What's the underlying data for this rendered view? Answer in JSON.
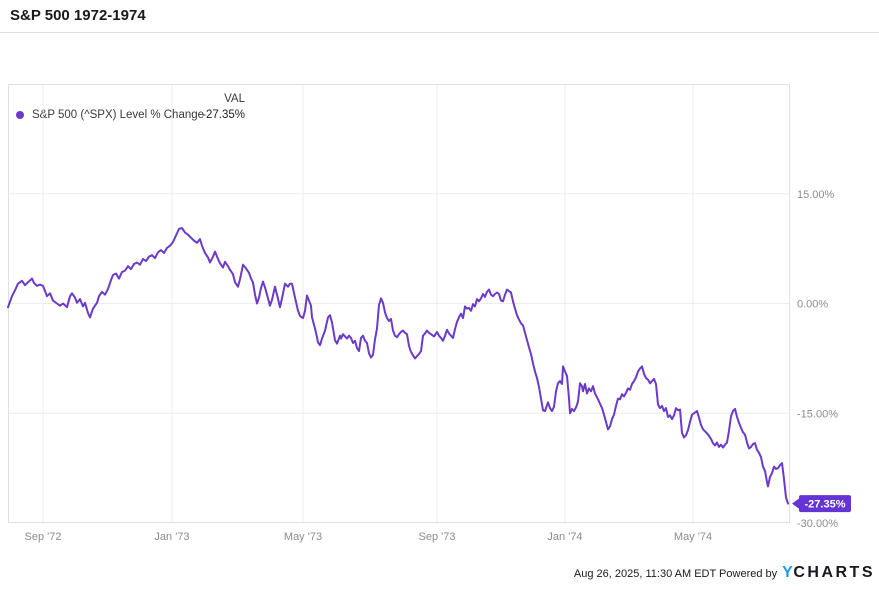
{
  "page": {
    "title": "S&P 500 1972-1974"
  },
  "legend": {
    "series_label": "S&P 500 (^SPX) Level % Change",
    "val_header": "VAL",
    "val_value": "-27.35%"
  },
  "footer": {
    "timestamp_powered": "Aug 26, 2025, 11:30 AM EDT Powered by",
    "logo_y": "Y",
    "logo_charts": "CHARTS"
  },
  "colors": {
    "line": "#6b3ac9",
    "badge": "#6434d4",
    "badge_text": "#ffffff",
    "grid": "#ececec",
    "plot_border": "#e0e0e0",
    "axis_text": "#8c8c8c",
    "title_text": "#1a1a1a",
    "logo_blue": "#1e9bf0",
    "logo_dark": "#15181e",
    "background": "#ffffff"
  },
  "chart_data": {
    "type": "line",
    "title": "S&P 500 1972-1974",
    "series_name": "S&P 500 (^SPX) Level % Change",
    "unit": "percent change",
    "ylim": [
      -30,
      30
    ],
    "grid": "on",
    "legend_position": "top-left",
    "y_gridlines": [
      15,
      0,
      -15
    ],
    "y_axis_labels": [
      {
        "label": "15.00%",
        "value": 15
      },
      {
        "label": "0.00%",
        "value": 0
      },
      {
        "label": "-15.00%",
        "value": -15
      },
      {
        "label": "-30.00%",
        "value": -30
      }
    ],
    "x_domain": [
      0,
      782
    ],
    "x_ticks": [
      {
        "label": "Sep '72",
        "x": 35
      },
      {
        "label": "Jan '73",
        "x": 164
      },
      {
        "label": "May '73",
        "x": 295
      },
      {
        "label": "Sep '73",
        "x": 429
      },
      {
        "label": "Jan '74",
        "x": 557
      },
      {
        "label": "May '74",
        "x": 685
      }
    ],
    "end_label": "-27.35%",
    "end_value": -27.35,
    "points": [
      [
        0,
        -0.5
      ],
      [
        4,
        1.0
      ],
      [
        7,
        1.8
      ],
      [
        10,
        2.7
      ],
      [
        14,
        3.1
      ],
      [
        17,
        2.5
      ],
      [
        20,
        2.9
      ],
      [
        24,
        3.4
      ],
      [
        26,
        2.8
      ],
      [
        29,
        2.4
      ],
      [
        32,
        2.6
      ],
      [
        35,
        2.4
      ],
      [
        39,
        1.0
      ],
      [
        42,
        1.4
      ],
      [
        45,
        0.4
      ],
      [
        49,
        0.0
      ],
      [
        52,
        -0.3
      ],
      [
        55,
        0.0
      ],
      [
        59,
        -0.5
      ],
      [
        62,
        1.0
      ],
      [
        64,
        1.4
      ],
      [
        67,
        0.8
      ],
      [
        69,
        0.1
      ],
      [
        72,
        0.6
      ],
      [
        75,
        -0.4
      ],
      [
        77,
        0.1
      ],
      [
        80,
        -1.3
      ],
      [
        82,
        -1.9
      ],
      [
        85,
        -0.7
      ],
      [
        89,
        0.1
      ],
      [
        91,
        1.0
      ],
      [
        94,
        1.6
      ],
      [
        97,
        1.2
      ],
      [
        100,
        2.0
      ],
      [
        103,
        3.2
      ],
      [
        105,
        3.9
      ],
      [
        108,
        4.1
      ],
      [
        111,
        3.4
      ],
      [
        114,
        4.3
      ],
      [
        117,
        4.5
      ],
      [
        120,
        5.1
      ],
      [
        123,
        4.7
      ],
      [
        126,
        5.4
      ],
      [
        129,
        5.6
      ],
      [
        132,
        5.3
      ],
      [
        135,
        6.1
      ],
      [
        138,
        5.8
      ],
      [
        141,
        6.4
      ],
      [
        144,
        6.6
      ],
      [
        147,
        6.2
      ],
      [
        150,
        7.0
      ],
      [
        153,
        7.3
      ],
      [
        156,
        6.9
      ],
      [
        159,
        7.6
      ],
      [
        162,
        7.9
      ],
      [
        165,
        8.4
      ],
      [
        168,
        9.3
      ],
      [
        171,
        10.2
      ],
      [
        174,
        10.3
      ],
      [
        177,
        9.7
      ],
      [
        180,
        9.4
      ],
      [
        183,
        9.0
      ],
      [
        186,
        8.6
      ],
      [
        189,
        8.3
      ],
      [
        192,
        8.8
      ],
      [
        194,
        7.9
      ],
      [
        197,
        6.9
      ],
      [
        200,
        6.3
      ],
      [
        202,
        5.6
      ],
      [
        205,
        6.4
      ],
      [
        207,
        7.1
      ],
      [
        210,
        6.1
      ],
      [
        212,
        5.5
      ],
      [
        215,
        4.9
      ],
      [
        217,
        5.7
      ],
      [
        220,
        5.1
      ],
      [
        222,
        4.6
      ],
      [
        225,
        4.0
      ],
      [
        227,
        2.9
      ],
      [
        230,
        2.3
      ],
      [
        232,
        3.3
      ],
      [
        235,
        5.3
      ],
      [
        238,
        4.8
      ],
      [
        241,
        4.2
      ],
      [
        243,
        3.4
      ],
      [
        245,
        2.9
      ],
      [
        247,
        1.2
      ],
      [
        249,
        0.0
      ],
      [
        251,
        0.8
      ],
      [
        253,
        2.1
      ],
      [
        255,
        3.0
      ],
      [
        257,
        2.2
      ],
      [
        259,
        1.2
      ],
      [
        262,
        -0.3
      ],
      [
        264,
        0.5
      ],
      [
        267,
        2.3
      ],
      [
        269,
        1.2
      ],
      [
        272,
        -0.5
      ],
      [
        274,
        0.7
      ],
      [
        277,
        2.7
      ],
      [
        280,
        2.3
      ],
      [
        282,
        2.7
      ],
      [
        284,
        2.7
      ],
      [
        287,
        0.8
      ],
      [
        290,
        -1.0
      ],
      [
        292,
        -1.7
      ],
      [
        295,
        -2.0
      ],
      [
        297,
        -1.0
      ],
      [
        299,
        1.1
      ],
      [
        301,
        0.4
      ],
      [
        303,
        -0.3
      ],
      [
        304,
        -1.9
      ],
      [
        307,
        -3.4
      ],
      [
        309,
        -4.6
      ],
      [
        310,
        -5.3
      ],
      [
        312,
        -5.7
      ],
      [
        314,
        -4.8
      ],
      [
        317,
        -3.7
      ],
      [
        320,
        -1.9
      ],
      [
        322,
        -1.6
      ],
      [
        324,
        -2.6
      ],
      [
        327,
        -5.0
      ],
      [
        329,
        -5.5
      ],
      [
        332,
        -4.4
      ],
      [
        333,
        -4.8
      ],
      [
        335,
        -4.2
      ],
      [
        337,
        -4.5
      ],
      [
        339,
        -4.8
      ],
      [
        341,
        -4.4
      ],
      [
        343,
        -4.7
      ],
      [
        345,
        -5.4
      ],
      [
        347,
        -5.1
      ],
      [
        349,
        -6.1
      ],
      [
        351,
        -6.5
      ],
      [
        353,
        -4.7
      ],
      [
        355,
        -4.4
      ],
      [
        357,
        -5.1
      ],
      [
        359,
        -5.4
      ],
      [
        361,
        -6.8
      ],
      [
        363,
        -7.4
      ],
      [
        365,
        -7.0
      ],
      [
        367,
        -4.9
      ],
      [
        369,
        -3.4
      ],
      [
        371,
        -0.2
      ],
      [
        373,
        0.7
      ],
      [
        375,
        0.1
      ],
      [
        377,
        -1.2
      ],
      [
        379,
        -2.0
      ],
      [
        381,
        -2.4
      ],
      [
        383,
        -2.1
      ],
      [
        385,
        -3.7
      ],
      [
        387,
        -4.4
      ],
      [
        389,
        -4.6
      ],
      [
        391,
        -4.2
      ],
      [
        393,
        -3.9
      ],
      [
        395,
        -3.7
      ],
      [
        397,
        -4.0
      ],
      [
        399,
        -4.2
      ],
      [
        401,
        -5.8
      ],
      [
        403,
        -6.6
      ],
      [
        405,
        -7.1
      ],
      [
        407,
        -7.5
      ],
      [
        409,
        -7.2
      ],
      [
        411,
        -6.9
      ],
      [
        413,
        -6.5
      ],
      [
        415,
        -4.4
      ],
      [
        417,
        -4.1
      ],
      [
        419,
        -3.7
      ],
      [
        421,
        -4.0
      ],
      [
        423,
        -4.2
      ],
      [
        426,
        -4.5
      ],
      [
        429,
        -3.9
      ],
      [
        431,
        -4.4
      ],
      [
        433,
        -4.7
      ],
      [
        435,
        -5.1
      ],
      [
        437,
        -4.4
      ],
      [
        439,
        -3.6
      ],
      [
        441,
        -4.1
      ],
      [
        443,
        -4.4
      ],
      [
        445,
        -4.7
      ],
      [
        447,
        -3.5
      ],
      [
        449,
        -2.5
      ],
      [
        451,
        -1.9
      ],
      [
        453,
        -1.4
      ],
      [
        455,
        -2.0
      ],
      [
        457,
        -0.4
      ],
      [
        459,
        -0.7
      ],
      [
        461,
        -0.6
      ],
      [
        463,
        -1.0
      ],
      [
        465,
        -0.1
      ],
      [
        467,
        -0.4
      ],
      [
        469,
        0.6
      ],
      [
        471,
        0.3
      ],
      [
        473,
        0.7
      ],
      [
        475,
        1.3
      ],
      [
        477,
        0.9
      ],
      [
        479,
        1.6
      ],
      [
        481,
        1.9
      ],
      [
        483,
        1.2
      ],
      [
        485,
        1.0
      ],
      [
        487,
        1.3
      ],
      [
        489,
        1.5
      ],
      [
        491,
        1.3
      ],
      [
        493,
        0.4
      ],
      [
        495,
        0.3
      ],
      [
        497,
        1.2
      ],
      [
        499,
        1.9
      ],
      [
        501,
        1.7
      ],
      [
        503,
        1.5
      ],
      [
        505,
        0.3
      ],
      [
        507,
        -0.7
      ],
      [
        509,
        -1.6
      ],
      [
        511,
        -2.2
      ],
      [
        513,
        -2.7
      ],
      [
        515,
        -3.0
      ],
      [
        517,
        -4.0
      ],
      [
        519,
        -5.0
      ],
      [
        521,
        -6.0
      ],
      [
        523,
        -6.9
      ],
      [
        525,
        -8.2
      ],
      [
        527,
        -9.3
      ],
      [
        529,
        -10.2
      ],
      [
        531,
        -11.4
      ],
      [
        533,
        -13.0
      ],
      [
        535,
        -14.6
      ],
      [
        537,
        -14.7
      ],
      [
        540,
        -13.5
      ],
      [
        542,
        -14.3
      ],
      [
        544,
        -14.7
      ],
      [
        546,
        -14.1
      ],
      [
        548,
        -12.0
      ],
      [
        550,
        -10.9
      ],
      [
        552,
        -10.6
      ],
      [
        554,
        -11.0
      ],
      [
        555,
        -8.6
      ],
      [
        557,
        -9.3
      ],
      [
        559,
        -9.9
      ],
      [
        561,
        -13.0
      ],
      [
        562,
        -15.0
      ],
      [
        564,
        -14.4
      ],
      [
        566,
        -14.7
      ],
      [
        568,
        -14.2
      ],
      [
        570,
        -13.4
      ],
      [
        572,
        -10.9
      ],
      [
        574,
        -11.3
      ],
      [
        575,
        -12.0
      ],
      [
        577,
        -11.0
      ],
      [
        579,
        -12.3
      ],
      [
        581,
        -11.6
      ],
      [
        583,
        -12.0
      ],
      [
        585,
        -11.3
      ],
      [
        587,
        -12.3
      ],
      [
        590,
        -13.1
      ],
      [
        592,
        -13.7
      ],
      [
        594,
        -14.3
      ],
      [
        596,
        -15.2
      ],
      [
        598,
        -16.2
      ],
      [
        600,
        -17.2
      ],
      [
        602,
        -16.8
      ],
      [
        604,
        -15.8
      ],
      [
        606,
        -15.2
      ],
      [
        608,
        -14.0
      ],
      [
        610,
        -13.0
      ],
      [
        612,
        -13.1
      ],
      [
        614,
        -12.4
      ],
      [
        616,
        -12.7
      ],
      [
        618,
        -12.2
      ],
      [
        620,
        -11.6
      ],
      [
        622,
        -11.8
      ],
      [
        624,
        -11.0
      ],
      [
        626,
        -10.6
      ],
      [
        628,
        -10.1
      ],
      [
        630,
        -9.3
      ],
      [
        632,
        -8.9
      ],
      [
        634,
        -8.6
      ],
      [
        636,
        -9.6
      ],
      [
        638,
        -10.2
      ],
      [
        640,
        -10.4
      ],
      [
        642,
        -10.9
      ],
      [
        644,
        -10.6
      ],
      [
        646,
        -10.3
      ],
      [
        648,
        -11.0
      ],
      [
        650,
        -13.8
      ],
      [
        652,
        -14.3
      ],
      [
        654,
        -14.0
      ],
      [
        656,
        -14.7
      ],
      [
        658,
        -14.3
      ],
      [
        660,
        -15.5
      ],
      [
        662,
        -15.3
      ],
      [
        664,
        -15.8
      ],
      [
        666,
        -15.3
      ],
      [
        668,
        -14.3
      ],
      [
        670,
        -14.6
      ],
      [
        672,
        -14.5
      ],
      [
        674,
        -17.7
      ],
      [
        676,
        -18.3
      ],
      [
        678,
        -18.0
      ],
      [
        680,
        -17.3
      ],
      [
        682,
        -16.2
      ],
      [
        684,
        -15.2
      ],
      [
        687,
        -14.9
      ],
      [
        689,
        -14.7
      ],
      [
        691,
        -15.6
      ],
      [
        693,
        -16.6
      ],
      [
        695,
        -17.2
      ],
      [
        698,
        -17.6
      ],
      [
        700,
        -17.9
      ],
      [
        703,
        -18.5
      ],
      [
        705,
        -19.1
      ],
      [
        707,
        -19.4
      ],
      [
        709,
        -19.0
      ],
      [
        711,
        -19.6
      ],
      [
        713,
        -19.3
      ],
      [
        715,
        -19.7
      ],
      [
        717,
        -19.3
      ],
      [
        719,
        -19.0
      ],
      [
        721,
        -17.4
      ],
      [
        723,
        -15.4
      ],
      [
        725,
        -14.7
      ],
      [
        727,
        -14.4
      ],
      [
        729,
        -15.5
      ],
      [
        731,
        -16.3
      ],
      [
        733,
        -17.0
      ],
      [
        735,
        -17.6
      ],
      [
        737,
        -17.9
      ],
      [
        739,
        -19.0
      ],
      [
        741,
        -19.8
      ],
      [
        743,
        -19.6
      ],
      [
        745,
        -19.2
      ],
      [
        747,
        -19.1
      ],
      [
        749,
        -20.0
      ],
      [
        751,
        -20.4
      ],
      [
        753,
        -21.0
      ],
      [
        755,
        -22.3
      ],
      [
        757,
        -22.9
      ],
      [
        759,
        -24.4
      ],
      [
        760,
        -25.0
      ],
      [
        762,
        -23.7
      ],
      [
        764,
        -23.2
      ],
      [
        766,
        -22.3
      ],
      [
        768,
        -22.6
      ],
      [
        770,
        -22.5
      ],
      [
        772,
        -22.1
      ],
      [
        774,
        -21.8
      ],
      [
        776,
        -24.0
      ],
      [
        778,
        -26.5
      ],
      [
        780,
        -27.35
      ]
    ]
  }
}
